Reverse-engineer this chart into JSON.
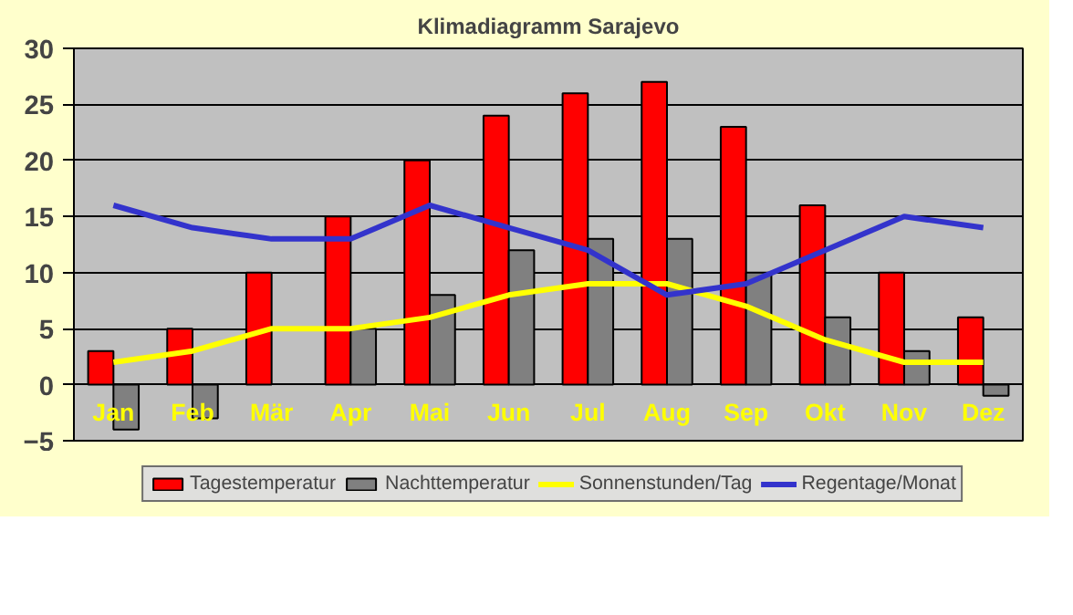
{
  "chart_data": {
    "type": "bar",
    "title": "Klimadiagramm Sarajevo",
    "categories": [
      "Jan",
      "Feb",
      "Mär",
      "Apr",
      "Mai",
      "Jun",
      "Jul",
      "Aug",
      "Sep",
      "Okt",
      "Nov",
      "Dez"
    ],
    "series": [
      {
        "name": "Tagestemperatur",
        "color": "#ff0000",
        "values": [
          3,
          5,
          10,
          15,
          20,
          24,
          26,
          27,
          23,
          16,
          10,
          6
        ]
      },
      {
        "name": "Nachttemperatur",
        "color": "#808080",
        "values": [
          -4,
          -3,
          null,
          5,
          8,
          12,
          13,
          13,
          10,
          6,
          3,
          -1
        ]
      },
      {
        "name": "Sonnenstunden/Tag",
        "type": "line",
        "color": "#ffff00",
        "values": [
          2,
          3,
          5,
          5,
          6,
          8,
          9,
          9,
          7,
          4,
          2,
          2
        ]
      },
      {
        "name": "Regentage/Monat",
        "type": "line",
        "color": "#3333cc",
        "values": [
          16,
          14,
          13,
          13,
          16,
          14,
          12,
          8,
          9,
          12,
          15,
          14
        ]
      }
    ],
    "ylim": [
      -5,
      30
    ],
    "yticks": [
      -5,
      0,
      5,
      10,
      15,
      20,
      25,
      30
    ],
    "grid": "y",
    "legend": "bottom"
  }
}
